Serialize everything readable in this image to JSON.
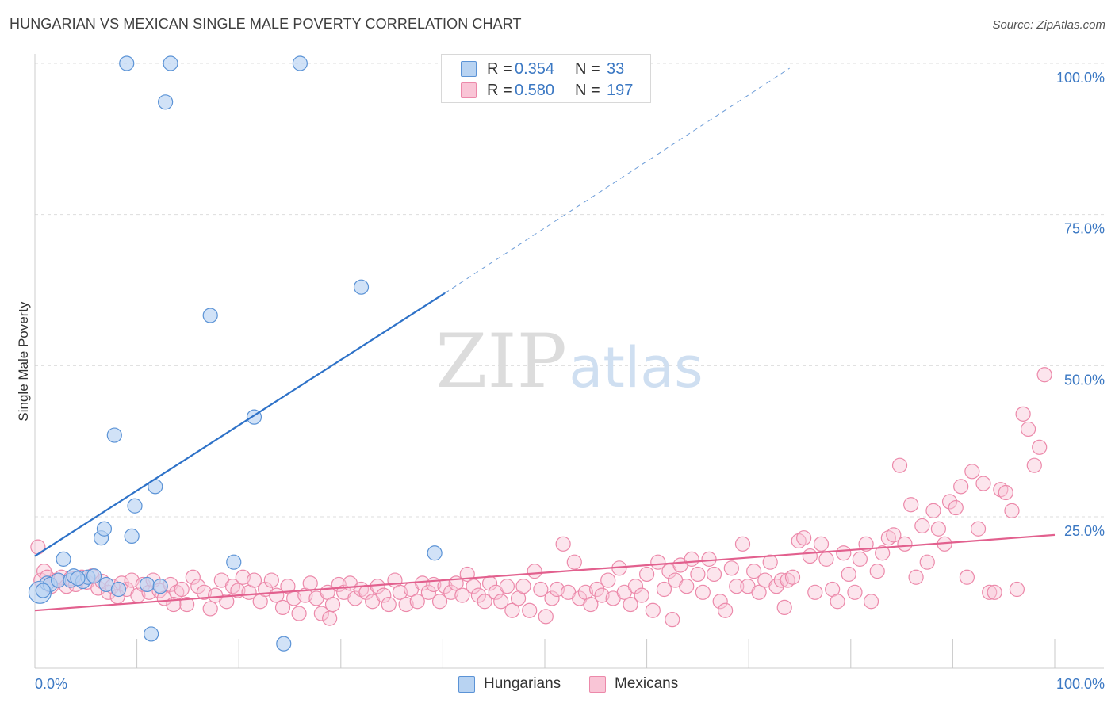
{
  "header": {
    "title": "HUNGARIAN VS MEXICAN SINGLE MALE POVERTY CORRELATION CHART",
    "source": "Source: ZipAtlas.com"
  },
  "watermark": {
    "zip": "ZIP",
    "atlas": "atlas"
  },
  "legend": {
    "hungarians": {
      "r_label": "R =",
      "r_value": "0.354",
      "n_label": "N =",
      "n_value": "33"
    },
    "mexicans": {
      "r_label": "R =",
      "r_value": "0.580",
      "n_label": "N =",
      "n_value": "197"
    }
  },
  "bottom_legend": {
    "hungarians": "Hungarians",
    "mexicans": "Mexicans"
  },
  "colors": {
    "hungarian_fill": "#b8d3f2",
    "hungarian_stroke": "#5b93d6",
    "hungarian_line": "#2e72c8",
    "mexican_fill": "#f9c5d6",
    "mexican_stroke": "#ec89aa",
    "mexican_line": "#e2608e",
    "tick_label": "#3b78c3",
    "grid": "#dddddd"
  },
  "chart_data": {
    "type": "scatter",
    "title": "HUNGARIAN VS MEXICAN SINGLE MALE POVERTY CORRELATION CHART",
    "xlabel": "",
    "ylabel": "Single Male Poverty",
    "xlim": [
      0,
      100
    ],
    "ylim": [
      -3,
      105
    ],
    "x_tick_labels": [
      "0.0%",
      "100.0%"
    ],
    "y_ticks": [
      25,
      50,
      75,
      100
    ],
    "y_tick_labels": [
      "25.0%",
      "50.0%",
      "75.0%",
      "100.0%"
    ],
    "series": [
      {
        "name": "Hungarians",
        "trend": {
          "x0": 0,
          "y0": 18.5,
          "x1": 40.2,
          "y1": 62.0,
          "dash_to_x": 74,
          "dash_to_y": 99.2
        },
        "points": [
          [
            0.5,
            12.5,
            14
          ],
          [
            1.2,
            14.0,
            9
          ],
          [
            1.5,
            13.8,
            9
          ],
          [
            2.3,
            14.5,
            9
          ],
          [
            2.8,
            18.0,
            9
          ],
          [
            3.5,
            14.5,
            9
          ],
          [
            3.8,
            15.2,
            9
          ],
          [
            4.7,
            14.3,
            9
          ],
          [
            5.2,
            15.0,
            9
          ],
          [
            5.8,
            15.2,
            9
          ],
          [
            6.5,
            21.5,
            9
          ],
          [
            6.8,
            23.0,
            9
          ],
          [
            7.0,
            13.8,
            9
          ],
          [
            7.8,
            38.5,
            9
          ],
          [
            8.2,
            13.0,
            9
          ],
          [
            9.0,
            100.0,
            9
          ],
          [
            9.5,
            21.8,
            9
          ],
          [
            9.8,
            26.8,
            9
          ],
          [
            11.0,
            13.8,
            9
          ],
          [
            11.4,
            5.6,
            9
          ],
          [
            11.8,
            30.0,
            9
          ],
          [
            12.3,
            13.5,
            9
          ],
          [
            12.8,
            93.6,
            9
          ],
          [
            13.3,
            100.0,
            9
          ],
          [
            17.2,
            58.3,
            9
          ],
          [
            19.5,
            17.5,
            9
          ],
          [
            21.5,
            41.5,
            9
          ],
          [
            24.4,
            4.0,
            9
          ],
          [
            26.0,
            100.0,
            9
          ],
          [
            32.0,
            63.0,
            9
          ],
          [
            39.2,
            19.0,
            9
          ],
          [
            0.8,
            12.8,
            9
          ],
          [
            4.2,
            14.8,
            9
          ]
        ]
      },
      {
        "name": "Mexicans",
        "trend": {
          "x0": 0,
          "y0": 9.5,
          "x1": 100,
          "y1": 22.0
        },
        "points": [
          [
            0.3,
            20.0
          ],
          [
            0.6,
            14.5
          ],
          [
            0.9,
            16.0
          ],
          [
            1.2,
            15.0
          ],
          [
            1.6,
            13.5
          ],
          [
            2.1,
            14.5
          ],
          [
            2.6,
            15.0
          ],
          [
            3.1,
            13.5
          ],
          [
            3.5,
            14.8
          ],
          [
            4.0,
            13.8
          ],
          [
            4.6,
            15.0
          ],
          [
            5.1,
            14.2
          ],
          [
            5.6,
            15.2
          ],
          [
            6.2,
            13.2
          ],
          [
            6.6,
            14.3
          ],
          [
            7.2,
            12.5
          ],
          [
            7.6,
            13.5
          ],
          [
            8.1,
            11.8
          ],
          [
            8.5,
            14.0
          ],
          [
            9.0,
            13.0
          ],
          [
            9.5,
            14.5
          ],
          [
            10.1,
            12.0
          ],
          [
            10.6,
            13.8
          ],
          [
            11.2,
            12.5
          ],
          [
            11.6,
            14.5
          ],
          [
            12.2,
            12.8
          ],
          [
            12.7,
            11.5
          ],
          [
            13.3,
            13.8
          ],
          [
            13.9,
            12.5
          ],
          [
            14.4,
            13.0
          ],
          [
            14.9,
            10.5
          ],
          [
            15.5,
            15.0
          ],
          [
            16.0,
            13.5
          ],
          [
            16.6,
            12.5
          ],
          [
            17.2,
            9.8
          ],
          [
            17.7,
            12.0
          ],
          [
            18.3,
            14.5
          ],
          [
            18.8,
            11.0
          ],
          [
            19.4,
            13.5
          ],
          [
            19.9,
            12.8
          ],
          [
            20.4,
            15.0
          ],
          [
            21.0,
            12.5
          ],
          [
            21.5,
            14.5
          ],
          [
            22.1,
            11.0
          ],
          [
            22.6,
            13.0
          ],
          [
            23.2,
            14.5
          ],
          [
            23.7,
            12.0
          ],
          [
            24.3,
            10.0
          ],
          [
            24.8,
            13.5
          ],
          [
            25.4,
            11.5
          ],
          [
            25.9,
            9.0
          ],
          [
            26.5,
            12.0
          ],
          [
            27.0,
            14.0
          ],
          [
            27.6,
            11.5
          ],
          [
            28.1,
            9.0
          ],
          [
            28.7,
            12.5
          ],
          [
            29.2,
            10.5
          ],
          [
            29.8,
            13.8
          ],
          [
            30.3,
            12.5
          ],
          [
            30.9,
            14.0
          ],
          [
            31.4,
            11.5
          ],
          [
            32.0,
            13.0
          ],
          [
            32.5,
            12.5
          ],
          [
            33.1,
            11.0
          ],
          [
            33.6,
            13.5
          ],
          [
            34.2,
            12.0
          ],
          [
            34.7,
            10.5
          ],
          [
            35.3,
            14.5
          ],
          [
            35.8,
            12.5
          ],
          [
            36.4,
            10.5
          ],
          [
            36.9,
            13.0
          ],
          [
            37.5,
            11.0
          ],
          [
            38.0,
            14.0
          ],
          [
            38.6,
            12.5
          ],
          [
            39.1,
            13.8
          ],
          [
            39.7,
            11.0
          ],
          [
            40.2,
            13.5
          ],
          [
            40.8,
            12.5
          ],
          [
            41.3,
            14.0
          ],
          [
            41.9,
            12.0
          ],
          [
            42.4,
            15.5
          ],
          [
            43.0,
            13.5
          ],
          [
            43.5,
            12.0
          ],
          [
            44.1,
            11.0
          ],
          [
            44.6,
            14.0
          ],
          [
            45.2,
            12.5
          ],
          [
            45.7,
            11.0
          ],
          [
            46.3,
            13.5
          ],
          [
            46.8,
            9.5
          ],
          [
            47.4,
            11.5
          ],
          [
            47.9,
            13.5
          ],
          [
            48.5,
            9.5
          ],
          [
            49.0,
            16.0
          ],
          [
            49.6,
            13.0
          ],
          [
            50.1,
            8.5
          ],
          [
            50.7,
            11.5
          ],
          [
            51.2,
            13.0
          ],
          [
            51.8,
            20.5
          ],
          [
            52.3,
            12.5
          ],
          [
            52.9,
            17.5
          ],
          [
            53.4,
            11.5
          ],
          [
            54.0,
            12.5
          ],
          [
            54.5,
            10.5
          ],
          [
            55.1,
            13.0
          ],
          [
            55.6,
            12.0
          ],
          [
            56.2,
            14.5
          ],
          [
            56.7,
            11.5
          ],
          [
            57.3,
            16.5
          ],
          [
            57.8,
            12.5
          ],
          [
            58.4,
            10.5
          ],
          [
            58.9,
            13.5
          ],
          [
            59.5,
            12.0
          ],
          [
            60.0,
            15.5
          ],
          [
            60.6,
            9.5
          ],
          [
            61.1,
            17.5
          ],
          [
            61.7,
            13.0
          ],
          [
            62.2,
            16.0
          ],
          [
            62.8,
            14.5
          ],
          [
            63.3,
            17.0
          ],
          [
            63.9,
            13.5
          ],
          [
            64.4,
            18.0
          ],
          [
            65.0,
            15.5
          ],
          [
            65.5,
            12.5
          ],
          [
            66.1,
            18.0
          ],
          [
            66.6,
            15.5
          ],
          [
            67.2,
            11.0
          ],
          [
            67.7,
            9.5
          ],
          [
            68.3,
            16.5
          ],
          [
            68.8,
            13.5
          ],
          [
            69.4,
            20.5
          ],
          [
            69.9,
            13.5
          ],
          [
            70.5,
            16.0
          ],
          [
            71.0,
            12.5
          ],
          [
            71.6,
            14.5
          ],
          [
            72.1,
            17.5
          ],
          [
            72.7,
            13.5
          ],
          [
            73.2,
            14.5
          ],
          [
            73.8,
            14.5
          ],
          [
            74.3,
            15.0
          ],
          [
            74.9,
            21.0
          ],
          [
            75.4,
            21.5
          ],
          [
            76.0,
            18.5
          ],
          [
            76.5,
            12.5
          ],
          [
            77.1,
            20.5
          ],
          [
            77.6,
            18.0
          ],
          [
            78.2,
            13.0
          ],
          [
            78.7,
            11.0
          ],
          [
            79.3,
            19.0
          ],
          [
            79.8,
            15.5
          ],
          [
            80.4,
            12.5
          ],
          [
            80.9,
            18.0
          ],
          [
            81.5,
            20.5
          ],
          [
            82.0,
            11.0
          ],
          [
            82.6,
            16.0
          ],
          [
            83.1,
            19.0
          ],
          [
            83.7,
            21.5
          ],
          [
            84.2,
            22.0
          ],
          [
            84.8,
            33.5
          ],
          [
            85.3,
            20.5
          ],
          [
            85.9,
            27.0
          ],
          [
            86.4,
            15.0
          ],
          [
            87.0,
            23.5
          ],
          [
            87.5,
            17.5
          ],
          [
            88.1,
            26.0
          ],
          [
            88.6,
            23.0
          ],
          [
            89.2,
            20.5
          ],
          [
            89.7,
            27.5
          ],
          [
            90.3,
            26.5
          ],
          [
            90.8,
            30.0
          ],
          [
            91.4,
            15.0
          ],
          [
            91.9,
            32.5
          ],
          [
            92.5,
            23.0
          ],
          [
            93.0,
            30.5
          ],
          [
            93.6,
            12.5
          ],
          [
            94.1,
            12.5
          ],
          [
            94.7,
            29.5
          ],
          [
            95.2,
            29.0
          ],
          [
            95.8,
            26.0
          ],
          [
            96.3,
            13.0
          ],
          [
            96.9,
            42.0
          ],
          [
            97.4,
            39.5
          ],
          [
            98.0,
            33.5
          ],
          [
            98.5,
            36.5
          ],
          [
            99.0,
            48.5
          ],
          [
            62.5,
            8.0
          ],
          [
            13.6,
            10.5
          ],
          [
            28.9,
            8.2
          ],
          [
            73.5,
            10.0
          ]
        ]
      }
    ]
  }
}
